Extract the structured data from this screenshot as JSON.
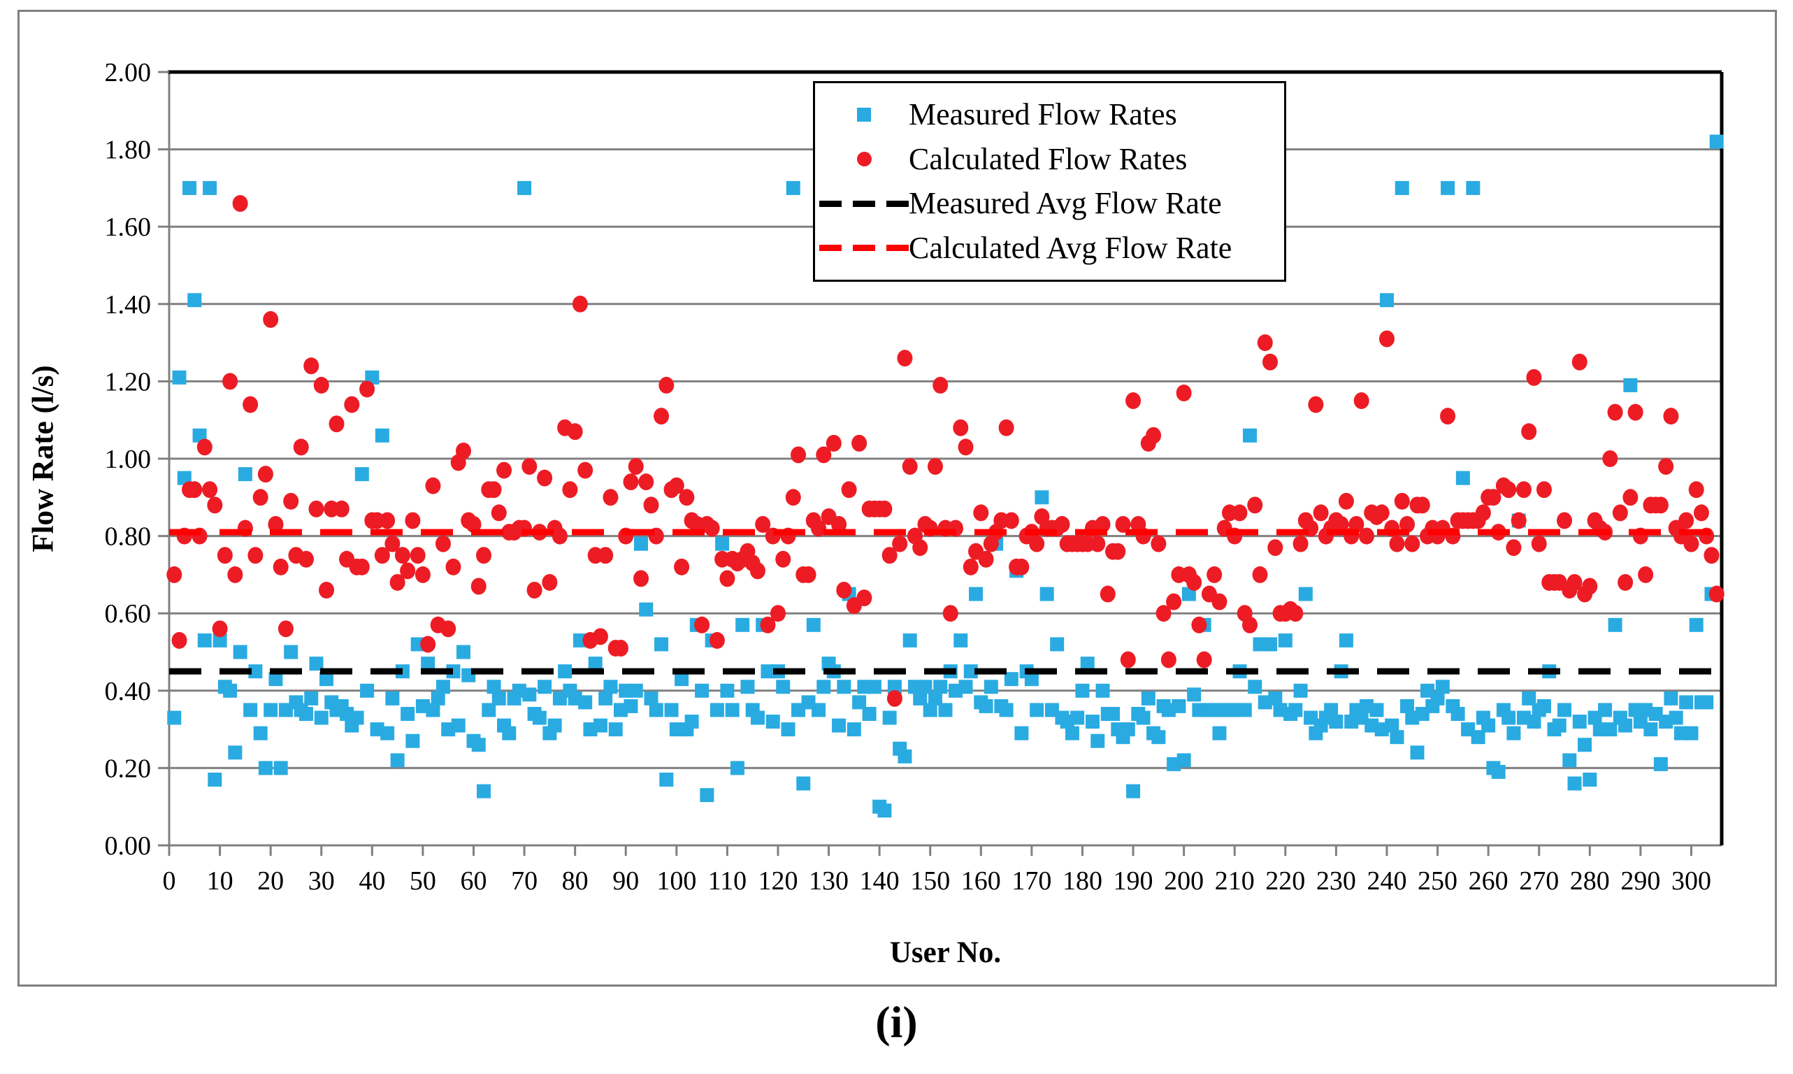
{
  "figure": {
    "caption": "(i)"
  },
  "chart_data": {
    "type": "scatter",
    "title": "",
    "xlabel": "User No.",
    "ylabel": "Flow Rate (l/s)",
    "xlim": [
      0,
      306
    ],
    "ylim": [
      0,
      2.0
    ],
    "x_ticks": [
      0,
      10,
      20,
      30,
      40,
      50,
      60,
      70,
      80,
      90,
      100,
      110,
      120,
      130,
      140,
      150,
      160,
      170,
      180,
      190,
      200,
      210,
      220,
      230,
      240,
      250,
      260,
      270,
      280,
      290,
      300
    ],
    "y_ticks": [
      "0.00",
      "0.20",
      "0.40",
      "0.60",
      "0.80",
      "1.00",
      "1.20",
      "1.40",
      "1.60",
      "1.80",
      "2.00"
    ],
    "grid": "horizontal",
    "legend_position": "top-center-right",
    "colors": {
      "measured": "#29ABE2",
      "calculated": "#ED1C24",
      "measured_avg": "#000000",
      "calculated_avg": "#FF0000",
      "gridline": "#808080",
      "plot_border": "#000000"
    },
    "series": [
      {
        "name": "Measured Flow Rates",
        "type": "scatter",
        "marker": "square",
        "color_key": "measured",
        "x_rule": {
          "start": 1,
          "step": 1
        },
        "values": [
          0.33,
          1.21,
          0.95,
          1.7,
          1.41,
          1.06,
          0.53,
          1.7,
          0.17,
          0.53,
          0.41,
          0.4,
          0.24,
          0.5,
          0.96,
          0.35,
          0.45,
          0.29,
          0.2,
          0.35,
          0.43,
          0.2,
          0.35,
          0.5,
          0.37,
          0.35,
          0.34,
          0.38,
          0.47,
          0.33,
          0.43,
          0.37,
          0.35,
          0.36,
          0.34,
          0.31,
          0.33,
          0.96,
          0.4,
          1.21,
          0.3,
          1.06,
          0.29,
          0.38,
          0.22,
          0.45,
          0.34,
          0.27,
          0.52,
          0.36,
          0.47,
          0.35,
          0.38,
          0.41,
          0.3,
          0.45,
          0.31,
          0.5,
          0.44,
          0.27,
          0.26,
          0.14,
          0.35,
          0.41,
          0.38,
          0.31,
          0.29,
          0.38,
          0.4,
          1.7,
          0.39,
          0.34,
          0.33,
          0.41,
          0.29,
          0.31,
          0.38,
          0.45,
          0.4,
          0.38,
          0.53,
          0.37,
          0.3,
          0.47,
          0.31,
          0.38,
          0.41,
          0.3,
          0.35,
          0.4,
          0.36,
          0.4,
          0.78,
          0.61,
          0.38,
          0.35,
          0.52,
          0.17,
          0.35,
          0.3,
          0.43,
          0.3,
          0.32,
          0.57,
          0.4,
          0.13,
          0.53,
          0.35,
          0.78,
          0.4,
          0.35,
          0.2,
          0.57,
          0.41,
          0.35,
          0.33,
          0.57,
          0.45,
          0.32,
          0.45,
          0.41,
          0.3,
          1.7,
          0.35,
          0.16,
          0.37,
          0.57,
          0.35,
          0.41,
          0.47,
          0.45,
          0.31,
          0.41,
          0.65,
          0.3,
          0.37,
          0.41,
          0.34,
          0.41,
          0.1,
          0.09,
          0.33,
          0.41,
          0.25,
          0.23,
          0.53,
          0.41,
          0.38,
          0.41,
          0.35,
          0.38,
          0.41,
          0.35,
          0.45,
          0.4,
          0.53,
          0.41,
          0.45,
          0.65,
          0.37,
          0.36,
          0.41,
          0.78,
          0.36,
          0.35,
          0.43,
          0.71,
          0.29,
          0.45,
          0.43,
          0.35,
          0.9,
          0.65,
          0.35,
          0.52,
          0.33,
          0.32,
          0.29,
          0.33,
          0.4,
          0.47,
          0.32,
          0.27,
          0.4,
          0.34,
          0.34,
          0.3,
          0.28,
          0.3,
          0.14,
          0.34,
          0.33,
          0.38,
          0.29,
          0.28,
          0.36,
          0.35,
          0.21,
          0.36,
          0.22,
          0.65,
          0.39,
          0.35,
          0.57,
          0.35,
          0.35,
          0.29,
          0.35,
          0.35,
          0.35,
          0.45,
          0.35,
          1.06,
          0.41,
          0.52,
          0.37,
          0.52,
          0.38,
          0.35,
          0.53,
          0.34,
          0.35,
          0.4,
          0.65,
          0.33,
          0.29,
          0.31,
          0.33,
          0.35,
          0.32,
          0.45,
          0.53,
          0.32,
          0.35,
          0.33,
          0.36,
          0.31,
          0.35,
          0.3,
          1.41,
          0.31,
          0.28,
          1.7,
          0.36,
          0.33,
          0.24,
          0.34,
          0.4,
          0.36,
          0.38,
          0.41,
          1.7,
          0.36,
          0.34,
          0.95,
          0.3,
          1.7,
          0.28,
          0.33,
          0.31,
          0.2,
          0.19,
          0.35,
          0.33,
          0.29,
          0.84,
          0.33,
          0.38,
          0.32,
          0.35,
          0.36,
          0.45,
          0.3,
          0.31,
          0.35,
          0.22,
          0.16,
          0.32,
          0.26,
          0.17,
          0.33,
          0.3,
          0.35,
          0.3,
          0.57,
          0.33,
          0.31,
          1.19,
          0.35,
          0.32,
          0.35,
          0.3,
          0.34,
          0.21,
          0.32,
          0.38,
          0.33,
          0.29,
          0.37,
          0.29,
          0.57,
          0.37,
          0.37,
          0.65,
          1.82
        ]
      },
      {
        "name": "Calculated Flow Rates",
        "type": "scatter",
        "marker": "circle",
        "color_key": "calculated",
        "x_rule": {
          "start": 1,
          "step": 1
        },
        "values": [
          0.7,
          0.53,
          0.8,
          0.92,
          0.92,
          0.8,
          1.03,
          0.92,
          0.88,
          0.56,
          0.75,
          1.2,
          0.7,
          1.66,
          0.82,
          1.14,
          0.75,
          0.9,
          0.96,
          1.36,
          0.83,
          0.72,
          0.56,
          0.89,
          0.75,
          1.03,
          0.74,
          1.24,
          0.87,
          1.19,
          0.66,
          0.87,
          1.09,
          0.87,
          0.74,
          1.14,
          0.72,
          0.72,
          1.18,
          0.84,
          0.84,
          0.75,
          0.84,
          0.78,
          0.68,
          0.75,
          0.71,
          0.84,
          0.75,
          0.7,
          0.52,
          0.93,
          0.57,
          0.78,
          0.56,
          0.72,
          0.99,
          1.02,
          0.84,
          0.83,
          0.67,
          0.75,
          0.92,
          0.92,
          0.86,
          0.97,
          0.81,
          0.81,
          0.82,
          0.82,
          0.98,
          0.66,
          0.81,
          0.95,
          0.68,
          0.82,
          0.8,
          1.08,
          0.92,
          1.07,
          1.4,
          0.97,
          0.53,
          0.75,
          0.54,
          0.75,
          0.9,
          0.51,
          0.51,
          0.8,
          0.94,
          0.98,
          0.69,
          0.94,
          0.88,
          0.8,
          1.11,
          1.19,
          0.92,
          0.93,
          0.72,
          0.9,
          0.84,
          0.83,
          0.57,
          0.83,
          0.82,
          0.53,
          0.74,
          0.69,
          0.74,
          0.73,
          0.74,
          0.76,
          0.73,
          0.71,
          0.83,
          0.57,
          0.8,
          0.6,
          0.74,
          0.8,
          0.9,
          1.01,
          0.7,
          0.7,
          0.84,
          0.82,
          1.01,
          0.85,
          1.04,
          0.83,
          0.66,
          0.92,
          0.62,
          1.04,
          0.64,
          0.87,
          0.87,
          0.87,
          0.87,
          0.75,
          0.38,
          0.78,
          1.26,
          0.98,
          0.8,
          0.77,
          0.83,
          0.82,
          0.98,
          1.19,
          0.82,
          0.6,
          0.82,
          1.08,
          1.03,
          0.72,
          0.76,
          0.86,
          0.74,
          0.78,
          0.81,
          0.84,
          1.08,
          0.84,
          0.72,
          0.72,
          0.8,
          0.81,
          0.78,
          0.85,
          0.82,
          0.82,
          0.82,
          0.83,
          0.78,
          0.78,
          0.78,
          0.78,
          0.78,
          0.82,
          0.78,
          0.83,
          0.65,
          0.76,
          0.76,
          0.83,
          0.48,
          1.15,
          0.83,
          0.8,
          1.04,
          1.06,
          0.78,
          0.6,
          0.48,
          0.63,
          0.7,
          1.17,
          0.7,
          0.68,
          0.57,
          0.48,
          0.65,
          0.7,
          0.63,
          0.82,
          0.86,
          0.8,
          0.86,
          0.6,
          0.57,
          0.88,
          0.7,
          1.3,
          1.25,
          0.77,
          0.6,
          0.6,
          0.61,
          0.6,
          0.78,
          0.84,
          0.82,
          1.14,
          0.86,
          0.8,
          0.82,
          0.84,
          0.83,
          0.89,
          0.8,
          0.83,
          1.15,
          0.8,
          0.86,
          0.85,
          0.86,
          1.31,
          0.82,
          0.78,
          0.89,
          0.83,
          0.78,
          0.88,
          0.88,
          0.8,
          0.82,
          0.8,
          0.82,
          1.11,
          0.8,
          0.84,
          0.84,
          0.84,
          0.84,
          0.84,
          0.86,
          0.9,
          0.9,
          0.81,
          0.93,
          0.92,
          0.77,
          0.84,
          0.92,
          1.07,
          1.21,
          0.78,
          0.92,
          0.68,
          0.68,
          0.68,
          0.84,
          0.66,
          0.68,
          1.25,
          0.65,
          0.67,
          0.84,
          0.82,
          0.81,
          1.0,
          1.12,
          0.86,
          0.68,
          0.9,
          1.12,
          0.8,
          0.7,
          0.88,
          0.88,
          0.88,
          0.98,
          1.11,
          0.82,
          0.8,
          0.84,
          0.78,
          0.92,
          0.86,
          0.8,
          0.75,
          0.65
        ]
      },
      {
        "name": "Measured Avg Flow Rate",
        "type": "hline",
        "style": "dashed",
        "color_key": "measured_avg",
        "value": 0.45
      },
      {
        "name": "Calculated Avg Flow Rate",
        "type": "hline",
        "style": "dashed",
        "color_key": "calculated_avg",
        "value": 0.81
      }
    ]
  }
}
